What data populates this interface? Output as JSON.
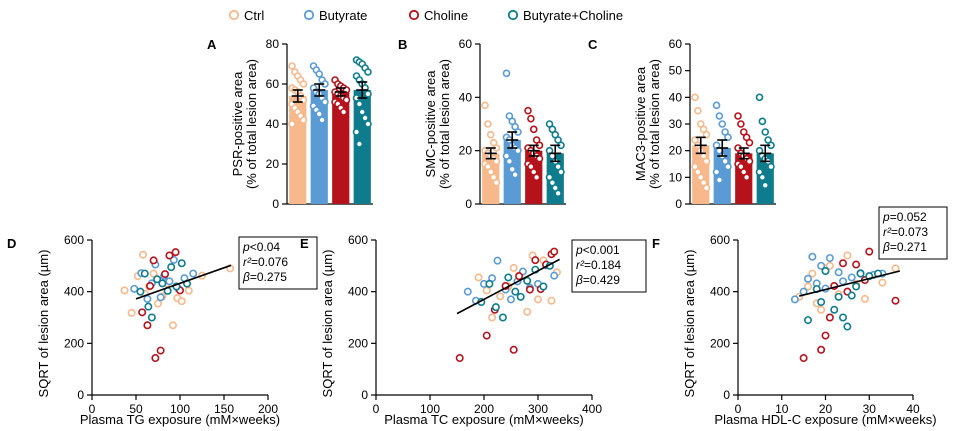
{
  "legend": {
    "items": [
      {
        "label": "Ctrl",
        "color": "#f7b98c"
      },
      {
        "label": "Butyrate",
        "color": "#5b9bd5"
      },
      {
        "label": "Choline",
        "color": "#b5121b"
      },
      {
        "label": "Butyrate+Choline",
        "color": "#0e7c8c"
      }
    ]
  },
  "chart_data": [
    {
      "type": "bar",
      "panel": "A",
      "ylabel_line1": "PSR-positive area",
      "ylabel_line2": "(% of total lesion area)",
      "ylim": [
        0,
        80
      ],
      "yticks": [
        "0",
        "20",
        "40",
        "60",
        "80"
      ],
      "categories": [
        "Ctrl",
        "Butyrate",
        "Choline",
        "Butyrate+Choline"
      ],
      "values": [
        54,
        57,
        56,
        57
      ],
      "errors": [
        3,
        3,
        2,
        4
      ],
      "points": [
        [
          69,
          66,
          64,
          62,
          60,
          58,
          57,
          56,
          54,
          52,
          50,
          48,
          46,
          44,
          42,
          40
        ],
        [
          69,
          67,
          65,
          62,
          60,
          58,
          56,
          55,
          53,
          51,
          49,
          47,
          45,
          42
        ],
        [
          62,
          60,
          59,
          58,
          57,
          56,
          55,
          54,
          53,
          52,
          51,
          50,
          48,
          46
        ],
        [
          72,
          71,
          70,
          68,
          66,
          64,
          62,
          60,
          58,
          55,
          53,
          50,
          46,
          43,
          40,
          36,
          30
        ]
      ]
    },
    {
      "type": "bar",
      "panel": "B",
      "ylabel_line1": "SMC-positive area",
      "ylabel_line2": "(% of total lesion area)",
      "ylim": [
        0,
        60
      ],
      "yticks": [
        "0",
        "20",
        "40",
        "60"
      ],
      "categories": [
        "Ctrl",
        "Butyrate",
        "Choline",
        "Butyrate+Choline"
      ],
      "values": [
        19,
        24,
        20,
        19
      ],
      "errors": [
        2,
        3,
        2,
        3
      ],
      "points": [
        [
          37,
          30,
          26,
          23,
          21,
          20,
          19,
          18,
          17,
          16,
          15,
          14,
          12,
          10,
          8
        ],
        [
          49,
          33,
          31,
          29,
          27,
          25,
          24,
          22,
          21,
          20,
          18,
          16,
          13,
          11
        ],
        [
          35,
          32,
          28,
          24,
          22,
          21,
          20,
          19,
          18,
          17,
          15,
          14,
          12,
          10
        ],
        [
          30,
          28,
          26,
          24,
          22,
          20,
          18,
          16,
          14,
          12,
          10,
          8,
          6,
          4
        ]
      ]
    },
    {
      "type": "bar",
      "panel": "C",
      "ylabel_line1": "MAC3-positive area",
      "ylabel_line2": "(% of total lesion area)",
      "ylim": [
        0,
        60
      ],
      "yticks": [
        "0",
        "10",
        "20",
        "30",
        "40",
        "50",
        "60"
      ],
      "categories": [
        "Ctrl",
        "Butyrate",
        "Choline",
        "Butyrate+Choline"
      ],
      "values": [
        22,
        21,
        19,
        19
      ],
      "errors": [
        3,
        3,
        2,
        3
      ],
      "points": [
        [
          40,
          35,
          30,
          28,
          26,
          24,
          22,
          20,
          18,
          16,
          14,
          12,
          10,
          8,
          6
        ],
        [
          37,
          33,
          30,
          27,
          25,
          22,
          20,
          18,
          16,
          14,
          12,
          9
        ],
        [
          33,
          30,
          27,
          25,
          23,
          21,
          19,
          18,
          17,
          16,
          15,
          14,
          12,
          10
        ],
        [
          40,
          31,
          27,
          24,
          22,
          20,
          18,
          17,
          16,
          14,
          12,
          10,
          7
        ]
      ]
    },
    {
      "type": "scatter",
      "panel": "D",
      "xlabel": "Plasma TG exposure (mM×weeks)",
      "ylabel": "SQRT of lesion area (µm)",
      "xlim": [
        0,
        200
      ],
      "ylim": [
        0,
        600
      ],
      "xticks": [
        "0",
        "50",
        "100",
        "150",
        "200"
      ],
      "yticks": [
        "0",
        "200",
        "400",
        "600"
      ],
      "stats": {
        "p": "<0.04",
        "r2": "=0.076",
        "beta": "=0.275"
      },
      "fit": {
        "x": [
          50,
          158
        ],
        "y": [
          372,
          502
        ]
      },
      "series": [
        {
          "group": "Ctrl",
          "points": [
            [
              37,
              405
            ],
            [
              45,
              318
            ],
            [
              52,
              460
            ],
            [
              58,
              543
            ],
            [
              60,
              392
            ],
            [
              65,
              420
            ],
            [
              70,
              470
            ],
            [
              75,
              354
            ],
            [
              80,
              382
            ],
            [
              85,
              432
            ],
            [
              92,
              270
            ],
            [
              97,
              375
            ],
            [
              102,
              363
            ],
            [
              110,
              404
            ],
            [
              125,
              462
            ],
            [
              157,
              490
            ]
          ]
        },
        {
          "group": "Butyrate",
          "points": [
            [
              48,
              411
            ],
            [
              56,
              472
            ],
            [
              63,
              372
            ],
            [
              68,
              432
            ],
            [
              72,
              505
            ],
            [
              78,
              378
            ],
            [
              82,
              461
            ],
            [
              88,
              440
            ],
            [
              93,
              523
            ],
            [
              98,
              412
            ],
            [
              105,
              452
            ],
            [
              115,
              470
            ]
          ]
        },
        {
          "group": "Choline",
          "points": [
            [
              57,
              320
            ],
            [
              63,
              270
            ],
            [
              66,
              422
            ],
            [
              70,
              521
            ],
            [
              72,
              143
            ],
            [
              78,
              172
            ],
            [
              83,
              468
            ],
            [
              88,
              540
            ],
            [
              95,
              553
            ],
            [
              100,
              405
            ]
          ]
        },
        {
          "group": "Butyrate+Choline",
          "points": [
            [
              55,
              400
            ],
            [
              60,
              470
            ],
            [
              64,
              342
            ],
            [
              68,
              300
            ],
            [
              74,
              448
            ],
            [
              80,
              432
            ],
            [
              86,
              403
            ],
            [
              90,
              495
            ],
            [
              96,
              420
            ],
            [
              102,
              510
            ],
            [
              108,
              431
            ]
          ]
        }
      ]
    },
    {
      "type": "scatter",
      "panel": "E",
      "xlabel": "Plasma TC exposure (mM×weeks)",
      "ylabel": "SQRT of lesion area (µm)",
      "xlim": [
        0,
        400
      ],
      "ylim": [
        0,
        600
      ],
      "xticks": [
        "0",
        "100",
        "200",
        "300",
        "400"
      ],
      "yticks": [
        "0",
        "200",
        "400",
        "600"
      ],
      "stats": {
        "p": "<0.001",
        "r2": "=0.184",
        "beta": "=0.429"
      },
      "fit": {
        "x": [
          150,
          340
        ],
        "y": [
          315,
          525
        ]
      },
      "series": [
        {
          "group": "Ctrl",
          "points": [
            [
              190,
              455
            ],
            [
              205,
              405
            ],
            [
              215,
              300
            ],
            [
              230,
              382
            ],
            [
              245,
              420
            ],
            [
              255,
              492
            ],
            [
              265,
              463
            ],
            [
              280,
              322
            ],
            [
              290,
              540
            ],
            [
              300,
              370
            ],
            [
              310,
              521
            ],
            [
              325,
              365
            ],
            [
              335,
              475
            ]
          ]
        },
        {
          "group": "Butyrate",
          "points": [
            [
              170,
              400
            ],
            [
              185,
              365
            ],
            [
              200,
              430
            ],
            [
              215,
              452
            ],
            [
              225,
              520
            ],
            [
              240,
              408
            ],
            [
              250,
              370
            ],
            [
              262,
              440
            ],
            [
              272,
              478
            ],
            [
              285,
              415
            ],
            [
              300,
              430
            ],
            [
              315,
              502
            ],
            [
              330,
              462
            ]
          ]
        },
        {
          "group": "Choline",
          "points": [
            [
              155,
              143
            ],
            [
              205,
              230
            ],
            [
              220,
              330
            ],
            [
              240,
              422
            ],
            [
              255,
              175
            ],
            [
              265,
              460
            ],
            [
              285,
              408
            ],
            [
              295,
              522
            ],
            [
              305,
              410
            ],
            [
              315,
              505
            ],
            [
              325,
              545
            ],
            [
              330,
              555
            ]
          ]
        },
        {
          "group": "Butyrate+Choline",
          "points": [
            [
              195,
              360
            ],
            [
              210,
              430
            ],
            [
              222,
              340
            ],
            [
              235,
              300
            ],
            [
              245,
              455
            ],
            [
              258,
              400
            ],
            [
              268,
              380
            ],
            [
              280,
              442
            ],
            [
              295,
              485
            ],
            [
              310,
              420
            ],
            [
              322,
              500
            ]
          ]
        }
      ]
    },
    {
      "type": "scatter",
      "panel": "F",
      "xlabel": "Plasma HDL-C exposure (mM×weeks)",
      "ylabel": "SQRT of lesion area (µm)",
      "xlim": [
        0,
        40
      ],
      "ylim": [
        0,
        600
      ],
      "xticks": [
        "0",
        "10",
        "20",
        "30",
        "40"
      ],
      "yticks": [
        "0",
        "200",
        "400",
        "600"
      ],
      "stats": {
        "p": "=0.052",
        "r2": "=0.073",
        "beta": "=0.271"
      },
      "fit": {
        "x": [
          14,
          37
        ],
        "y": [
          383,
          480
        ]
      },
      "series": [
        {
          "group": "Ctrl",
          "points": [
            [
              14,
              380
            ],
            [
              16,
              420
            ],
            [
              17,
              470
            ],
            [
              18,
              355
            ],
            [
              19,
              330
            ],
            [
              20,
              490
            ],
            [
              21,
              500
            ],
            [
              23,
              390
            ],
            [
              25,
              540
            ],
            [
              27,
              430
            ],
            [
              29,
              372
            ],
            [
              33,
              435
            ],
            [
              36,
              490
            ]
          ]
        },
        {
          "group": "Butyrate",
          "points": [
            [
              13,
              370
            ],
            [
              15,
              400
            ],
            [
              16,
              450
            ],
            [
              17,
              535
            ],
            [
              18,
              432
            ],
            [
              19,
              500
            ],
            [
              20,
              412
            ],
            [
              21,
              530
            ],
            [
              23,
              475
            ],
            [
              24,
              440
            ],
            [
              26,
              455
            ],
            [
              28,
              472
            ],
            [
              31,
              465
            ],
            [
              33,
              470
            ]
          ]
        },
        {
          "group": "Choline",
          "points": [
            [
              15,
              143
            ],
            [
              19,
              175
            ],
            [
              20,
              230
            ],
            [
              21,
              300
            ],
            [
              22,
              422
            ],
            [
              24,
              510
            ],
            [
              25,
              400
            ],
            [
              27,
              505
            ],
            [
              29,
              445
            ],
            [
              30,
              555
            ],
            [
              36,
              365
            ]
          ]
        },
        {
          "group": "Butyrate+Choline",
          "points": [
            [
              16,
              290
            ],
            [
              18,
              410
            ],
            [
              19,
              360
            ],
            [
              20,
              480
            ],
            [
              22,
              330
            ],
            [
              23,
              380
            ],
            [
              24,
              300
            ],
            [
              25,
              265
            ],
            [
              26,
              385
            ],
            [
              27,
              420
            ],
            [
              28,
              470
            ],
            [
              30,
              460
            ],
            [
              32,
              470
            ]
          ]
        }
      ]
    }
  ]
}
